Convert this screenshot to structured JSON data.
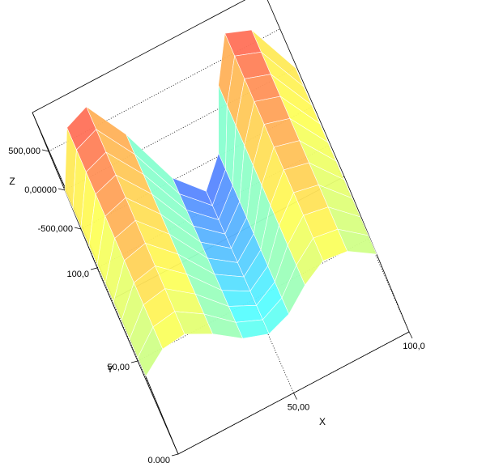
{
  "chart_data": {
    "type": "surface",
    "x_label": "X",
    "y_label": "Y",
    "z_label": "Z",
    "x": [
      0,
      10,
      20,
      30,
      40,
      50,
      60,
      70,
      80,
      90,
      100
    ],
    "y": [
      0,
      10,
      20,
      30,
      40,
      50,
      60,
      70,
      80,
      90,
      100
    ],
    "z": [
      [
        0,
        194000,
        228000,
        74000,
        -141000,
        -240000,
        -141000,
        74000,
        228000,
        194000,
        0
      ],
      [
        0,
        239000,
        282000,
        91000,
        -174000,
        -296000,
        -174000,
        91000,
        282000,
        239000,
        0
      ],
      [
        0,
        285000,
        335000,
        109000,
        -207000,
        -352000,
        -207000,
        109000,
        335000,
        285000,
        0
      ],
      [
        0,
        330000,
        388000,
        126000,
        -240000,
        -408000,
        -240000,
        126000,
        388000,
        330000,
        0
      ],
      [
        0,
        375000,
        441000,
        143000,
        -273000,
        -464000,
        -273000,
        143000,
        441000,
        375000,
        0
      ],
      [
        0,
        421000,
        495000,
        161000,
        -306000,
        -520000,
        -306000,
        161000,
        495000,
        421000,
        0
      ],
      [
        0,
        466000,
        548000,
        178000,
        -338000,
        -576000,
        -338000,
        178000,
        548000,
        466000,
        0
      ],
      [
        0,
        511000,
        601000,
        195000,
        -371000,
        -632000,
        -371000,
        195000,
        601000,
        511000,
        0
      ],
      [
        0,
        556000,
        654000,
        212000,
        -404000,
        -688000,
        -404000,
        212000,
        654000,
        556000,
        0
      ],
      [
        0,
        602000,
        708000,
        230000,
        -437000,
        -744000,
        -437000,
        230000,
        708000,
        602000,
        0
      ],
      [
        0,
        647000,
        761000,
        247000,
        -470000,
        -800000,
        -470000,
        247000,
        761000,
        647000,
        0
      ]
    ],
    "colormap": "jet",
    "xlim": [
      0,
      100
    ],
    "ylim": [
      0,
      100
    ],
    "zlim": [
      -1000000,
      1000000
    ],
    "xticks": [
      {
        "value": 50,
        "label": "50,00"
      },
      {
        "value": 100,
        "label": "100,0"
      }
    ],
    "yticks": [
      {
        "value": 0,
        "label": "0,000"
      },
      {
        "value": 50,
        "label": "50,00"
      },
      {
        "value": 100,
        "label": "100,0"
      }
    ],
    "zticks": [
      {
        "value": -500000,
        "label": "-500,000"
      },
      {
        "value": 0,
        "label": "0,00000"
      },
      {
        "value": 500000,
        "label": "500,000"
      }
    ]
  }
}
